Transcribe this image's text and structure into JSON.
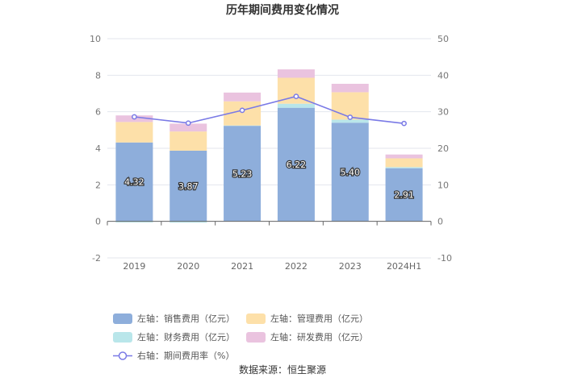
{
  "chart_data": {
    "type": "bar",
    "title": "历年期间费用变化情况",
    "categories": [
      "2019",
      "2020",
      "2021",
      "2022",
      "2023",
      "2024H1"
    ],
    "stacked": true,
    "y_left": {
      "min": -2,
      "max": 10,
      "ticks": [
        -2,
        0,
        2,
        4,
        6,
        8,
        10
      ]
    },
    "y_right": {
      "min": -10,
      "max": 50,
      "ticks": [
        -10,
        0,
        10,
        20,
        30,
        40,
        50
      ]
    },
    "series": [
      {
        "name": "左轴：销售费用（亿元）",
        "type": "bar",
        "axis": "left",
        "color": "#8eaedb",
        "values": [
          4.32,
          3.87,
          5.23,
          6.22,
          5.4,
          2.91
        ],
        "labels": [
          "4.32",
          "3.87",
          "5.23",
          "6.22",
          "5.40",
          "2.91"
        ]
      },
      {
        "name": "左轴：财务费用（亿元）",
        "type": "bar",
        "axis": "left",
        "color": "#b9e6ea",
        "values": [
          -0.06,
          -0.07,
          0.02,
          0.22,
          0.17,
          0.06
        ]
      },
      {
        "name": "左轴：管理费用（亿元）",
        "type": "bar",
        "axis": "left",
        "color": "#fde0a9",
        "values": [
          1.12,
          1.05,
          1.32,
          1.42,
          1.5,
          0.48
        ]
      },
      {
        "name": "左轴：研发费用（亿元）",
        "type": "bar",
        "axis": "left",
        "color": "#eac3df",
        "values": [
          0.36,
          0.43,
          0.48,
          0.46,
          0.46,
          0.21
        ]
      },
      {
        "name": "右轴：期间费用率（%）",
        "type": "line",
        "axis": "right",
        "color": "#7a7ae6",
        "values": [
          28.6,
          26.9,
          30.4,
          34.2,
          28.5,
          26.8
        ]
      }
    ],
    "legend": {
      "position": "bottom",
      "order": [
        {
          "label": "左轴：销售费用（亿元）",
          "color": "#8eaedb",
          "kind": "bar"
        },
        {
          "label": "左轴：管理费用（亿元）",
          "color": "#fde0a9",
          "kind": "bar"
        },
        {
          "label": "左轴：财务费用（亿元）",
          "color": "#b9e6ea",
          "kind": "bar"
        },
        {
          "label": "左轴：研发费用（亿元）",
          "color": "#eac3df",
          "kind": "bar"
        },
        {
          "label": "右轴：期间费用率（%）",
          "color": "#7a7ae6",
          "kind": "line"
        }
      ]
    },
    "grid": true
  },
  "source": "数据来源：恒生聚源"
}
